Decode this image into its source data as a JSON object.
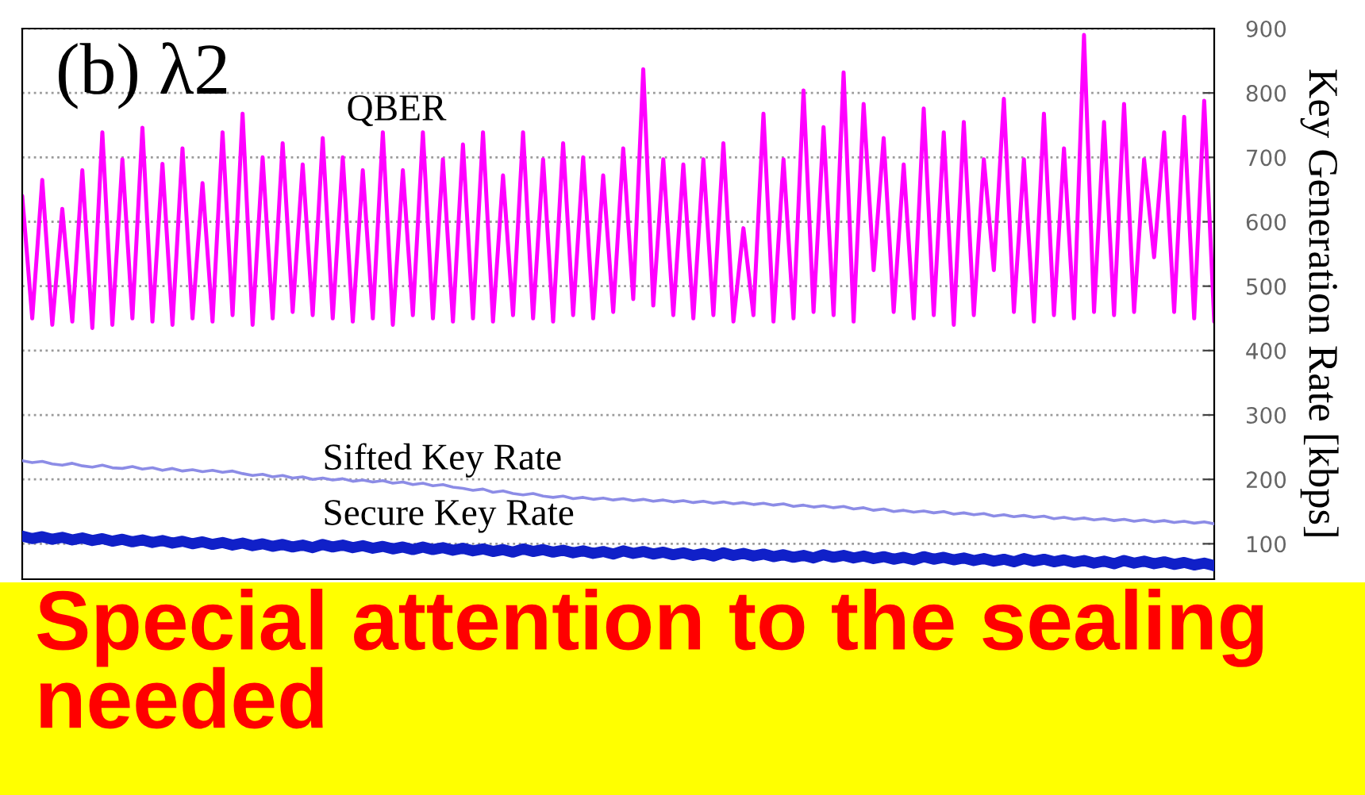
{
  "chart_data": {
    "type": "line",
    "title": "(b) λ2",
    "ylabel": "Key Generation Rate [kbps]",
    "annotations": [
      "Special attention to the sealing needed"
    ],
    "categories": [
      null,
      null,
      null,
      null,
      null,
      null,
      null,
      null,
      null,
      null,
      null,
      null,
      null,
      null,
      null,
      null,
      null,
      null,
      null,
      null,
      null,
      null,
      null,
      null,
      null,
      null,
      null,
      null,
      null,
      null,
      null,
      null,
      null,
      null,
      null,
      null,
      null,
      null,
      null,
      null,
      null,
      null,
      null,
      null,
      null,
      null,
      null,
      null,
      null,
      null,
      null,
      null,
      null,
      null,
      null,
      null,
      null,
      null,
      null,
      null,
      null,
      null,
      null,
      null,
      null,
      null,
      null,
      null,
      null,
      null,
      null,
      null,
      null,
      null,
      null,
      null,
      null,
      null,
      null,
      null,
      null,
      null,
      null,
      null,
      null,
      null,
      null,
      null,
      null,
      null,
      null,
      null,
      null,
      null,
      null,
      null,
      null,
      null,
      null,
      null,
      null,
      null,
      null,
      null,
      null,
      null,
      null,
      null,
      null,
      null,
      null,
      null,
      null,
      null,
      null,
      null,
      null,
      null,
      null,
      null
    ],
    "series": [
      {
        "name": "QBER",
        "color": "#ff00ff",
        "values": [
          640,
          450,
          665,
          440,
          620,
          445,
          680,
          435,
          739,
          440,
          697,
          450,
          746,
          445,
          690,
          440,
          714,
          450,
          660,
          445,
          739,
          455,
          768,
          440,
          700,
          450,
          722,
          460,
          689,
          455,
          730,
          450,
          700,
          445,
          680,
          450,
          739,
          440,
          680,
          455,
          739,
          450,
          697,
          445,
          720,
          450,
          739,
          445,
          672,
          455,
          739,
          450,
          697,
          445,
          722,
          455,
          700,
          450,
          672,
          460,
          714,
          480,
          837,
          470,
          697,
          455,
          689,
          450,
          697,
          455,
          722,
          445,
          590,
          455,
          768,
          445,
          697,
          450,
          804,
          460,
          747,
          455,
          832,
          445,
          783,
          525,
          730,
          460,
          689,
          450,
          776,
          455,
          739,
          440,
          755,
          455,
          697,
          525,
          791,
          460,
          697,
          445,
          768,
          455,
          714,
          450,
          890,
          460,
          755,
          455,
          783,
          460,
          697,
          545,
          739,
          460,
          763,
          450,
          788,
          445
        ]
      },
      {
        "name": "Sifted Key Rate",
        "color": "#8c8ce6",
        "values": [
          229,
          226,
          228,
          224,
          222,
          225,
          221,
          219,
          222,
          218,
          217,
          220,
          216,
          218,
          214,
          217,
          213,
          215,
          212,
          214,
          211,
          213,
          209,
          206,
          208,
          204,
          206,
          202,
          204,
          200,
          202,
          199,
          201,
          197,
          199,
          196,
          198,
          194,
          196,
          192,
          194,
          190,
          192,
          188,
          186,
          183,
          185,
          180,
          182,
          178,
          176,
          178,
          174,
          172,
          174,
          170,
          172,
          169,
          171,
          168,
          170,
          167,
          169,
          166,
          168,
          165,
          167,
          164,
          166,
          163,
          165,
          162,
          164,
          161,
          163,
          160,
          162,
          158,
          160,
          157,
          159,
          156,
          158,
          154,
          156,
          152,
          154,
          150,
          152,
          149,
          151,
          148,
          150,
          146,
          148,
          145,
          147,
          143,
          145,
          142,
          144,
          141,
          143,
          139,
          141,
          138,
          140,
          137,
          139,
          136,
          138,
          135,
          137,
          134,
          136,
          133,
          135,
          132,
          134,
          131
        ]
      },
      {
        "name": "Secure Key Rate",
        "color": "#1020c8",
        "values": [
          112,
          108,
          111,
          107,
          110,
          106,
          109,
          105,
          108,
          104,
          107,
          103,
          106,
          102,
          105,
          101,
          104,
          100,
          103,
          99,
          102,
          98,
          101,
          97,
          100,
          96,
          99,
          95,
          98,
          94,
          99,
          95,
          98,
          94,
          97,
          93,
          96,
          92,
          95,
          91,
          95,
          91,
          94,
          90,
          93,
          89,
          92,
          88,
          91,
          87,
          92,
          88,
          91,
          87,
          90,
          86,
          89,
          85,
          88,
          84,
          89,
          85,
          88,
          84,
          87,
          83,
          86,
          82,
          85,
          81,
          86,
          82,
          85,
          81,
          84,
          80,
          83,
          79,
          82,
          78,
          83,
          79,
          82,
          78,
          81,
          77,
          80,
          76,
          79,
          75,
          80,
          76,
          79,
          75,
          78,
          74,
          77,
          73,
          76,
          72,
          77,
          73,
          76,
          72,
          75,
          71,
          74,
          70,
          73,
          69,
          74,
          70,
          73,
          69,
          72,
          68,
          71,
          67,
          70,
          66
        ]
      }
    ],
    "ylim": [
      45,
      900
    ],
    "yticks": [
      100,
      200,
      300,
      400,
      500,
      600,
      700,
      800,
      900
    ],
    "grid": "y"
  }
}
